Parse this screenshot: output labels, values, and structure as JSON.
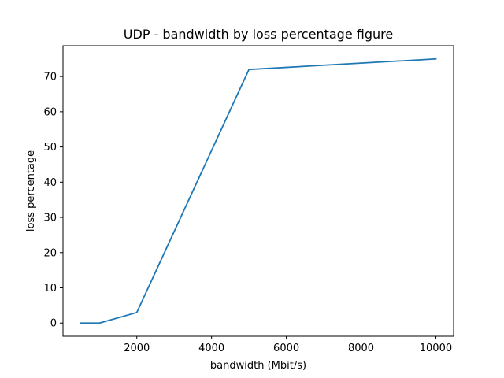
{
  "chart_data": {
    "type": "line",
    "title": "UDP - bandwidth by loss percentage figure",
    "xlabel": "bandwidth (Mbit/s)",
    "ylabel": "loss percentage",
    "xlim": [
      25,
      10475
    ],
    "ylim": [
      -3.75,
      78.75
    ],
    "xticks": [
      2000,
      4000,
      6000,
      8000,
      10000
    ],
    "yticks": [
      0,
      10,
      20,
      30,
      40,
      50,
      60,
      70
    ],
    "grid": false,
    "series": [
      {
        "color": "#1f77b4",
        "x": [
          500,
          1000,
          2000,
          5000,
          10000
        ],
        "y": [
          0,
          0,
          3,
          72,
          75
        ]
      }
    ]
  }
}
